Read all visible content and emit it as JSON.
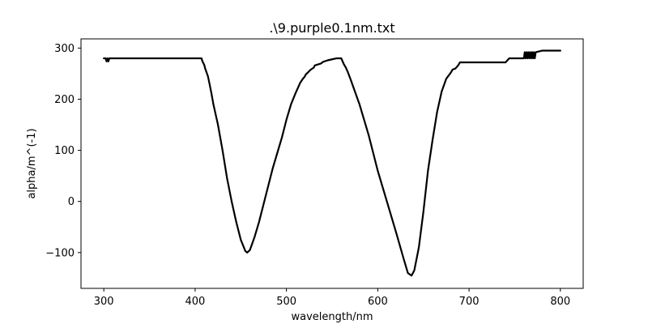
{
  "chart_data": {
    "type": "line",
    "title": ".\\9.purple0.1nm.txt",
    "xlabel": "wavelength/nm",
    "ylabel": "alpha/m^(-1)",
    "xlim": [
      275,
      825
    ],
    "ylim": [
      -170,
      318
    ],
    "xticks": [
      300,
      400,
      500,
      600,
      700,
      800
    ],
    "yticks": [
      -100,
      0,
      100,
      200,
      300
    ],
    "xtick_labels": [
      "300",
      "400",
      "500",
      "600",
      "700",
      "800"
    ],
    "ytick_labels": [
      "−100",
      "0",
      "100",
      "200",
      "300"
    ],
    "grid": false,
    "line_color": "#000000",
    "series": [
      {
        "x": [
          300,
          302,
          303,
          304,
          305,
          306,
          320,
          350,
          380,
          406,
          407,
          408,
          410,
          411,
          412,
          414,
          416,
          418,
          420,
          425,
          430,
          435,
          440,
          445,
          450,
          455,
          457,
          460,
          465,
          470,
          475,
          480,
          485,
          490,
          495,
          500,
          505,
          510,
          515,
          518,
          520,
          521,
          525,
          526,
          530,
          531,
          538,
          540,
          545,
          550,
          555,
          560,
          561,
          563,
          565,
          567,
          570,
          575,
          580,
          585,
          590,
          595,
          600,
          610,
          620,
          628,
          633,
          637,
          640,
          645,
          650,
          655,
          660,
          665,
          670,
          675,
          680,
          682,
          685,
          688,
          690,
          700,
          720,
          740,
          743,
          744,
          760,
          761,
          762,
          763,
          764,
          765,
          766,
          767,
          768,
          769,
          770,
          771,
          772,
          773,
          780,
          790,
          800
        ],
        "y": [
          280,
          280,
          274,
          280,
          274,
          280,
          280,
          280,
          280,
          280,
          280,
          274,
          267,
          260,
          255,
          245,
          228,
          210,
          190,
          150,
          100,
          45,
          0,
          -40,
          -75,
          -97,
          -100,
          -95,
          -70,
          -40,
          -5,
          30,
          65,
          95,
          125,
          160,
          190,
          212,
          232,
          240,
          244,
          248,
          255,
          257,
          262,
          266,
          270,
          273,
          276,
          278,
          280,
          280,
          276,
          268,
          262,
          254,
          240,
          215,
          190,
          160,
          130,
          95,
          60,
          0,
          -60,
          -110,
          -140,
          -145,
          -135,
          -90,
          -20,
          60,
          120,
          175,
          215,
          240,
          252,
          258,
          260,
          266,
          272,
          272,
          272,
          272,
          278,
          280,
          280,
          292,
          280,
          292,
          280,
          292,
          280,
          292,
          280,
          292,
          280,
          292,
          280,
          292,
          295,
          295,
          295
        ]
      }
    ]
  }
}
